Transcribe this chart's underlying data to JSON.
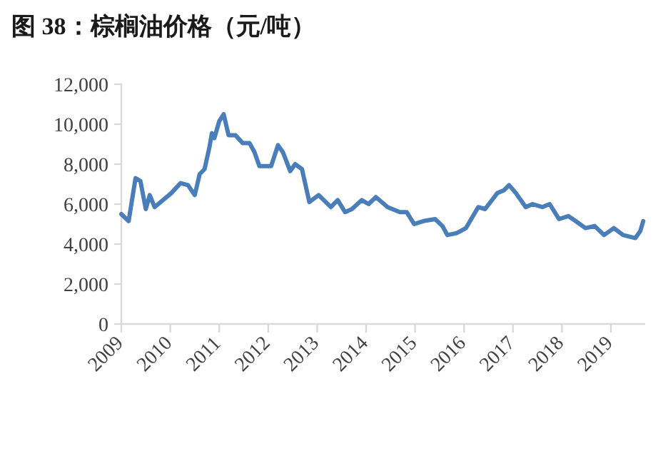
{
  "chart_data": {
    "type": "line",
    "title": "图 38：棕榈油价格（元/吨）",
    "x": [
      2009.0,
      2009.15,
      2009.29,
      2009.39,
      2009.5,
      2009.58,
      2009.68,
      2010.02,
      2010.21,
      2010.36,
      2010.5,
      2010.6,
      2010.7,
      2010.8,
      2010.85,
      2010.9,
      2011.0,
      2011.09,
      2011.19,
      2011.33,
      2011.48,
      2011.62,
      2011.72,
      2011.82,
      2012.06,
      2012.2,
      2012.3,
      2012.45,
      2012.55,
      2012.69,
      2012.84,
      2013.03,
      2013.28,
      2013.42,
      2013.57,
      2013.71,
      2013.91,
      2014.05,
      2014.2,
      2014.44,
      2014.69,
      2014.83,
      2014.98,
      2015.17,
      2015.41,
      2015.56,
      2015.66,
      2015.85,
      2016.04,
      2016.29,
      2016.43,
      2016.68,
      2016.82,
      2016.92,
      2017.06,
      2017.26,
      2017.4,
      2017.6,
      2017.75,
      2017.94,
      2018.13,
      2018.28,
      2018.48,
      2018.67,
      2018.86,
      2019.06,
      2019.25,
      2019.5,
      2019.6,
      2019.66
    ],
    "series": [
      {
        "color": "#4a7ebb",
        "values": [
          5500,
          5150,
          7300,
          7150,
          5750,
          6450,
          5850,
          6550,
          7050,
          6950,
          6450,
          7500,
          7750,
          8850,
          9550,
          9300,
          10150,
          10500,
          9450,
          9450,
          9050,
          9050,
          8600,
          7900,
          7900,
          8950,
          8600,
          7650,
          8000,
          7750,
          6100,
          6450,
          5850,
          6200,
          5600,
          5750,
          6200,
          6000,
          6350,
          5850,
          5600,
          5600,
          5000,
          5150,
          5250,
          4900,
          4450,
          4550,
          4800,
          5850,
          5750,
          6550,
          6700,
          6950,
          6550,
          5850,
          6000,
          5850,
          6000,
          5250,
          5400,
          5150,
          4800,
          4900,
          4450,
          4800,
          4450,
          4300,
          4650,
          5150
        ]
      }
    ],
    "xlim": [
      2009,
      2019.7
    ],
    "xticks": [
      2009,
      2010,
      2011,
      2012,
      2013,
      2014,
      2015,
      2016,
      2017,
      2018,
      2019
    ],
    "ylim": [
      0,
      12000
    ],
    "yticks": [
      {
        "value": 0,
        "label": "0"
      },
      {
        "value": 2000,
        "label": "2,000"
      },
      {
        "value": 4000,
        "label": "4,000"
      },
      {
        "value": 6000,
        "label": "6,000"
      },
      {
        "value": 8000,
        "label": "8,000"
      },
      {
        "value": 10000,
        "label": "10,000"
      },
      {
        "value": 12000,
        "label": "12,000"
      }
    ],
    "grid": false,
    "marker": "none",
    "line_style": "solid"
  }
}
